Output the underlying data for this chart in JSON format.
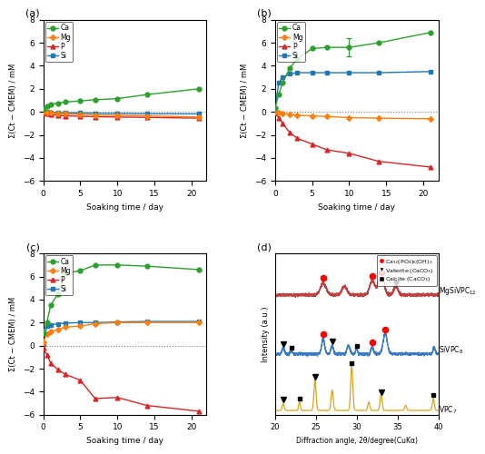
{
  "time_points": [
    0,
    0.5,
    1,
    2,
    3,
    5,
    7,
    10,
    14,
    21
  ],
  "a_Ca": [
    0.25,
    0.45,
    0.65,
    0.75,
    0.85,
    0.95,
    1.05,
    1.15,
    1.5,
    2.0
  ],
  "a_Mg": [
    0.0,
    -0.05,
    -0.1,
    -0.15,
    -0.18,
    -0.22,
    -0.27,
    -0.3,
    -0.35,
    -0.45
  ],
  "a_P": [
    -0.1,
    -0.18,
    -0.22,
    -0.3,
    -0.35,
    -0.38,
    -0.42,
    -0.45,
    -0.48,
    -0.55
  ],
  "a_Si": [
    0.0,
    -0.02,
    -0.04,
    -0.06,
    -0.08,
    -0.1,
    -0.12,
    -0.14,
    -0.16,
    -0.18
  ],
  "b_Ca": [
    0.3,
    1.5,
    2.5,
    3.8,
    4.6,
    5.5,
    5.6,
    5.6,
    6.0,
    6.9
  ],
  "b_Mg": [
    0.0,
    -0.1,
    -0.15,
    -0.2,
    -0.3,
    -0.35,
    -0.4,
    -0.5,
    -0.55,
    -0.6
  ],
  "b_P": [
    -0.1,
    -0.5,
    -1.0,
    -1.8,
    -2.3,
    -2.8,
    -3.3,
    -3.6,
    -4.3,
    -4.8
  ],
  "b_Si": [
    0.3,
    2.5,
    3.0,
    3.3,
    3.4,
    3.4,
    3.4,
    3.4,
    3.4,
    3.5
  ],
  "c_Ca": [
    1.1,
    2.0,
    3.5,
    4.5,
    6.3,
    6.5,
    7.0,
    7.0,
    6.9,
    6.6
  ],
  "c_Mg": [
    0.3,
    1.0,
    1.2,
    1.4,
    1.6,
    1.7,
    1.9,
    2.0,
    2.0,
    2.0
  ],
  "c_P": [
    -0.2,
    -0.8,
    -1.5,
    -2.1,
    -2.5,
    -3.0,
    -4.6,
    -4.5,
    -5.2,
    -5.7
  ],
  "c_Si": [
    0.1,
    1.7,
    1.8,
    1.9,
    1.95,
    2.0,
    2.0,
    2.05,
    2.1,
    2.1
  ],
  "color_Ca": "#2ca02c",
  "color_Mg": "#ff7f0e",
  "color_P": "#d62728",
  "color_Si": "#1f77b4",
  "ylim_abc": [
    -6,
    8
  ],
  "yticks_abc": [
    -6,
    -4,
    -2,
    0,
    2,
    4,
    6,
    8
  ],
  "xlim": [
    0,
    22
  ],
  "xticks": [
    0,
    5,
    10,
    15,
    20
  ],
  "ylabel": "Σ(Ct − CMEM) / mM",
  "xlabel": "Soaking time / day",
  "d_xlabel": "Diffraction angle, 2θ/degree(CuKα)",
  "d_ylabel": "Intensity (a.u.)",
  "panel_labels": [
    "(a)",
    "(b)",
    "(c)",
    "(d)"
  ],
  "vpc_color": "#DAA520",
  "sivpc_color": "#3A7CC4",
  "mgsivpc_color": "#C04040",
  "vpc_label": "VPC$_7$",
  "sivpc_label": "SiVPC$_8$",
  "mgsivpc_label": "MgSiVPC$_{12}$",
  "legend_d_hap": "Ca$_{10}$(PO$_4$)$_6$(OH)$_2$",
  "legend_d_vaterite": "Vaterite (CaCO$_3$)",
  "legend_d_calcite": "Calcite (CaCO$_3$)"
}
